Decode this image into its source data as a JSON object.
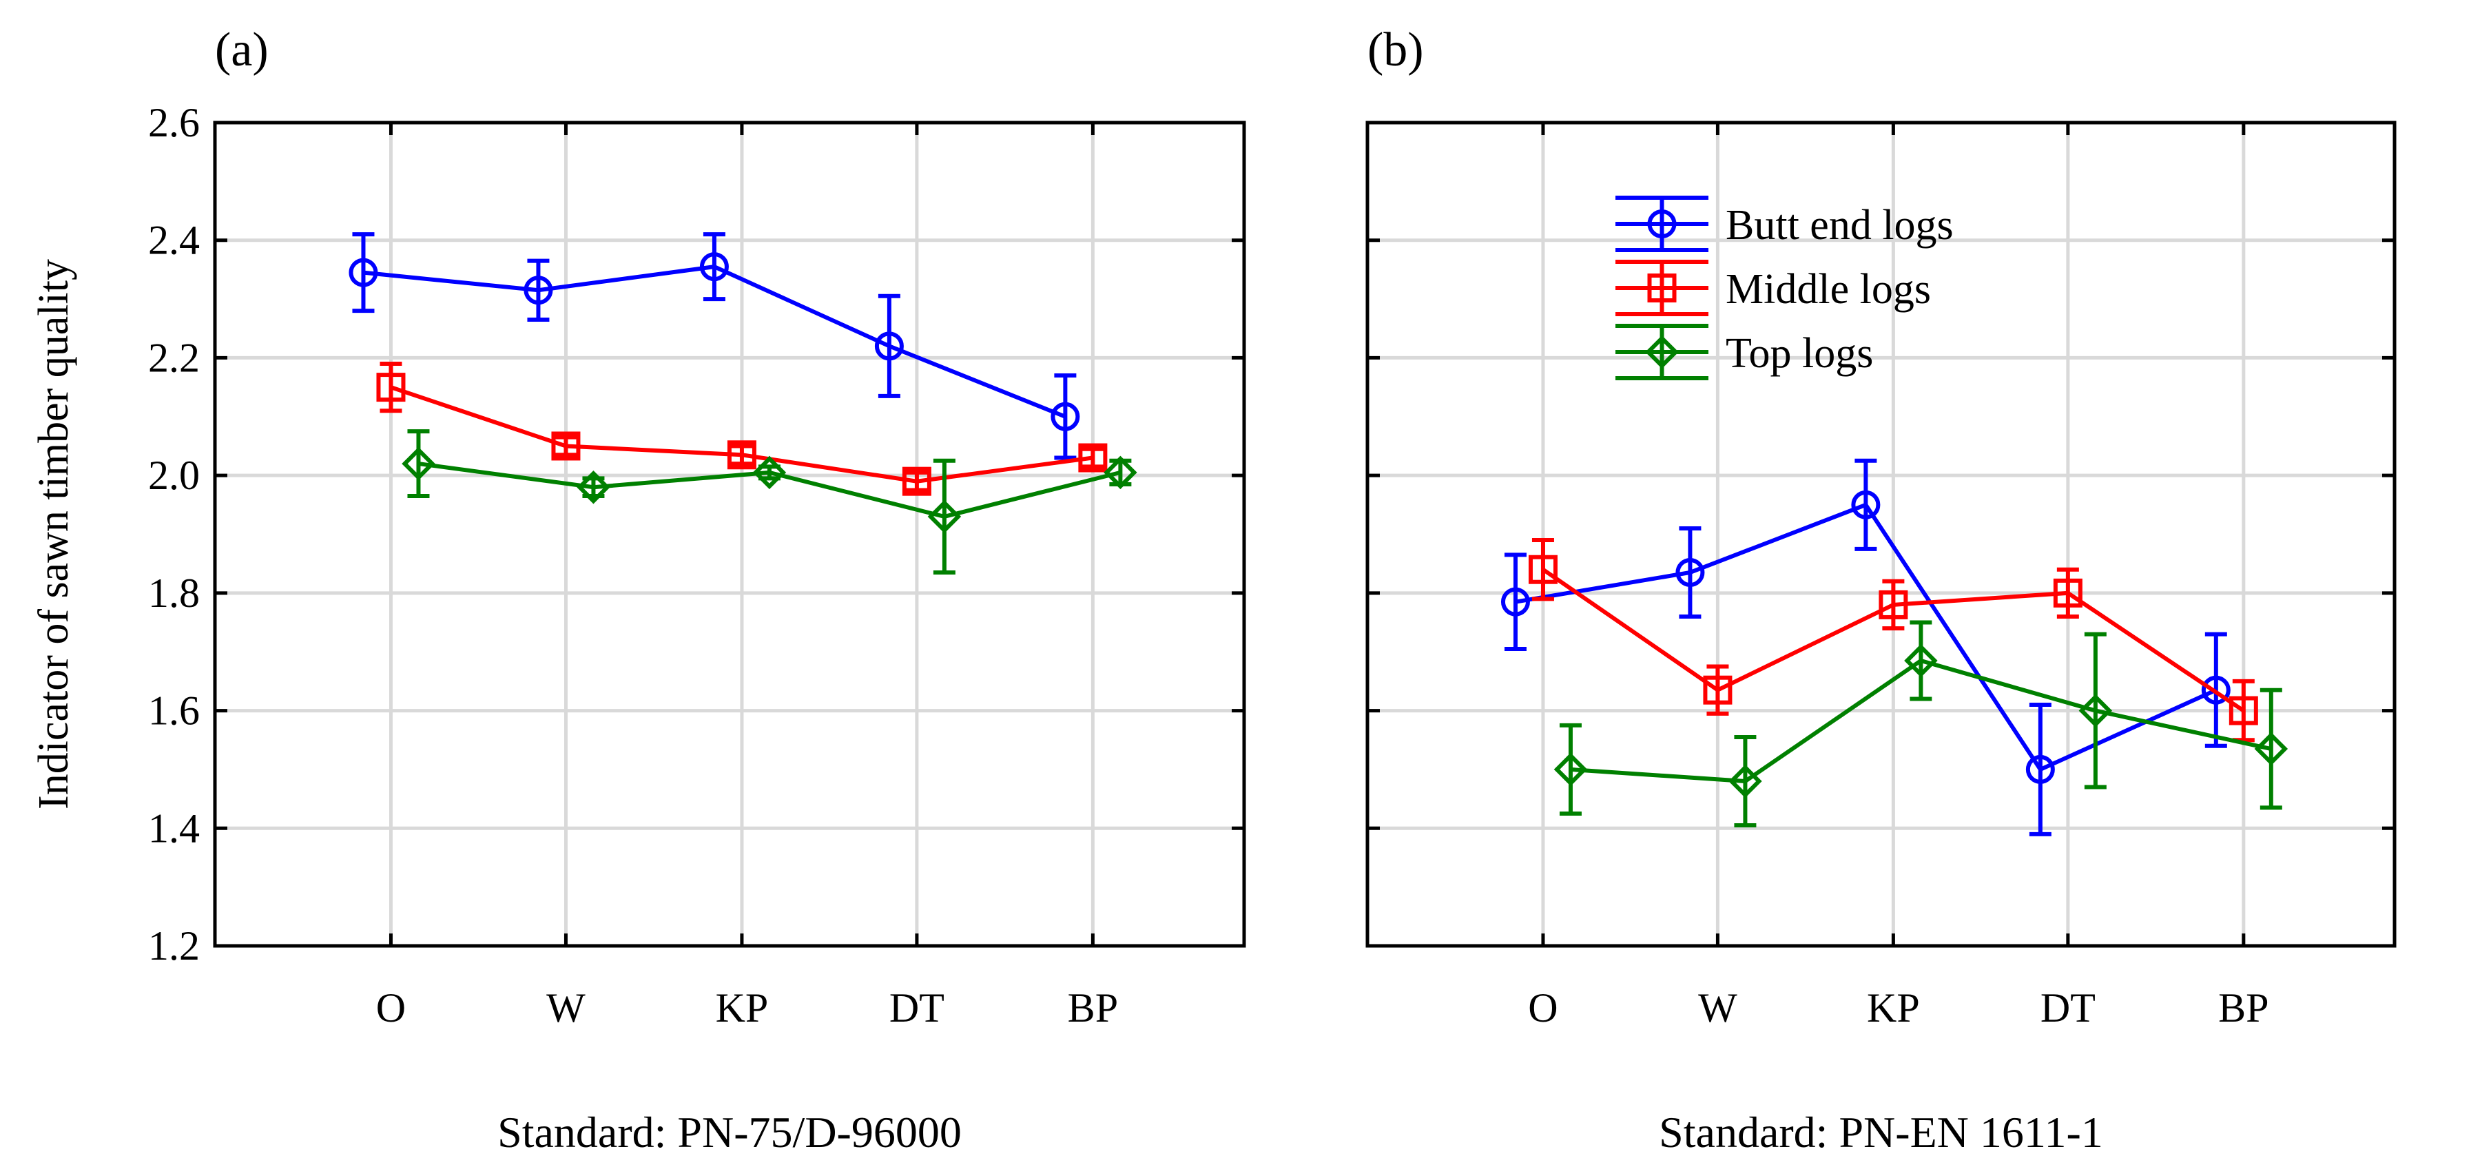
{
  "chart_data": [
    {
      "type": "line",
      "panel_label": "(a)",
      "xlabel": "Standard: PN-75/D-96000",
      "ylabel": "Indicator of sawn timber quality",
      "categories": [
        "O",
        "W",
        "KP",
        "DT",
        "BP"
      ],
      "ylim": [
        1.2,
        2.6
      ],
      "yticks": [
        "2.6",
        "2.4",
        "2.2",
        "2.0",
        "1.8",
        "1.6",
        "1.4",
        "1.2"
      ],
      "grid": true,
      "error_bars": true,
      "series": [
        {
          "name": "Butt end logs",
          "color": "#0000ff",
          "marker": "circle",
          "values": [
            2.345,
            2.315,
            2.355,
            2.22,
            2.1
          ],
          "errors": [
            0.065,
            0.05,
            0.055,
            0.085,
            0.07
          ]
        },
        {
          "name": "Middle logs",
          "color": "#ff0000",
          "marker": "square",
          "values": [
            2.15,
            2.05,
            2.035,
            1.99,
            2.03
          ],
          "errors": [
            0.04,
            0.015,
            0.015,
            0.015,
            0.015
          ]
        },
        {
          "name": "Top logs",
          "color": "#008000",
          "marker": "diamond",
          "values": [
            2.02,
            1.98,
            2.005,
            1.93,
            2.005
          ],
          "errors": [
            0.055,
            0.015,
            0.01,
            0.095,
            0.02
          ]
        }
      ]
    },
    {
      "type": "line",
      "panel_label": "(b)",
      "xlabel": "Standard: PN-EN 1611-1",
      "ylabel": "",
      "categories": [
        "O",
        "W",
        "KP",
        "DT",
        "BP"
      ],
      "ylim": [
        1.2,
        2.6
      ],
      "yticks": [],
      "grid": true,
      "error_bars": true,
      "legend": "top-left",
      "series": [
        {
          "name": "Butt end logs",
          "color": "#0000ff",
          "marker": "circle",
          "values": [
            1.785,
            1.835,
            1.95,
            1.5,
            1.635
          ],
          "errors": [
            0.08,
            0.075,
            0.075,
            0.11,
            0.095
          ]
        },
        {
          "name": "Middle logs",
          "color": "#ff0000",
          "marker": "square",
          "values": [
            1.84,
            1.635,
            1.78,
            1.8,
            1.6
          ],
          "errors": [
            0.05,
            0.04,
            0.04,
            0.04,
            0.05
          ]
        },
        {
          "name": "Top logs",
          "color": "#008000",
          "marker": "diamond",
          "values": [
            1.5,
            1.48,
            1.685,
            1.6,
            1.535
          ],
          "errors": [
            0.075,
            0.075,
            0.065,
            0.13,
            0.1
          ]
        }
      ]
    }
  ]
}
